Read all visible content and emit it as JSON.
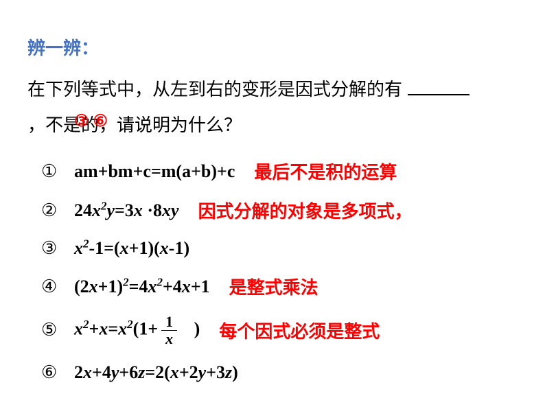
{
  "colors": {
    "title_color": "#4472c4",
    "text_color": "#000000",
    "highlight_color": "#ff0000",
    "background": "#ffffff"
  },
  "fonts": {
    "body_size": 26,
    "formula_family": "Times New Roman"
  },
  "title": "辨一辨：",
  "question_part1": "在下列等式中，从左到右的变形是因式分解的有",
  "question_part2": "，不是的，请说明为什么？",
  "answer_overlay": "③ ⑥",
  "items": [
    {
      "num": "①",
      "formula_html": "<span class='rm'>am+bm+c=m(a+b)+c</span>",
      "plain": "am+bm+c=m(a+b)+c",
      "explain": "最后不是积的运算"
    },
    {
      "num": "②",
      "formula_html": "<span class='rm'>24</span>x<sup>2</sup>y<span class='rm'>=3</span>x <span class='dot'>·</span><span class='rm'>8</span>xy",
      "plain": "24x²y=3x·8xy",
      "explain": "因式分解的对象是多项式，"
    },
    {
      "num": "③",
      "formula_html": "x<sup>2</sup><span class='rm'>-1=(</span>x<span class='rm'>+1)(</span>x<span class='rm'>-1)</span>",
      "plain": "x²-1=(x+1)(x-1)",
      "explain": ""
    },
    {
      "num": "④",
      "formula_html": "<span class='rm'>(2</span>x<span class='rm'>+1)</span><sup>2</sup><span class='rm'>=4</span>x<sup>2</sup><span class='rm'>+4</span>x<span class='rm'>+1</span>",
      "plain": "(2x+1)²=4x²+4x+1",
      "explain": "是整式乘法"
    },
    {
      "num": "⑤",
      "formula_html": "x<sup>2</sup><span class='rm'>+</span>x<span class='rm'>=</span>x<sup>2</sup><span class='rm'>(1+</span><span class='frac'><span class='top'>1</span><span class='bot'>x</span></span>&nbsp;&nbsp;&nbsp;<span class='rm'>)</span>",
      "plain": "x²+x=x²(1+1/x)",
      "explain": "每个因式必须是整式"
    },
    {
      "num": "⑥",
      "formula_html": "<span class='rm'>2</span>x<span class='rm'>+4</span>y<span class='rm'>+6</span>z<span class='rm'>=2(</span>x<span class='rm'>+2</span>y<span class='rm'>+3</span>z<span class='rm'>)</span>",
      "plain": "2x+4y+6z=2(x+2y+3z)",
      "explain": ""
    }
  ]
}
